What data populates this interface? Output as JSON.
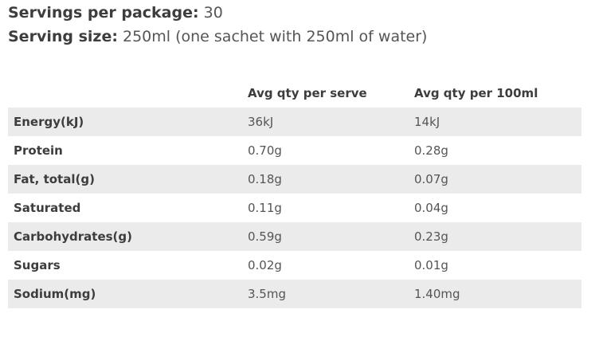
{
  "summary": {
    "servings_label": "Servings per package:",
    "servings_value": "30",
    "size_label": "Serving size:",
    "size_value": "250ml (one sachet with 250ml of water)"
  },
  "table": {
    "headers": [
      "",
      "Avg qty per serve",
      "Avg qty per 100ml"
    ],
    "rows": [
      {
        "nutrient": "Energy(kJ)",
        "per_serve": "36kJ",
        "per_100ml": "14kJ"
      },
      {
        "nutrient": "Protein",
        "per_serve": "0.70g",
        "per_100ml": "0.28g"
      },
      {
        "nutrient": "Fat, total(g)",
        "per_serve": "0.18g",
        "per_100ml": "0.07g"
      },
      {
        "nutrient": "Saturated",
        "per_serve": "0.11g",
        "per_100ml": "0.04g"
      },
      {
        "nutrient": "Carbohydrates(g)",
        "per_serve": "0.59g",
        "per_100ml": "0.23g"
      },
      {
        "nutrient": "Sugars",
        "per_serve": "0.02g",
        "per_100ml": "0.01g"
      },
      {
        "nutrient": "Sodium(mg)",
        "per_serve": "3.5mg",
        "per_100ml": "1.40mg"
      }
    ]
  }
}
